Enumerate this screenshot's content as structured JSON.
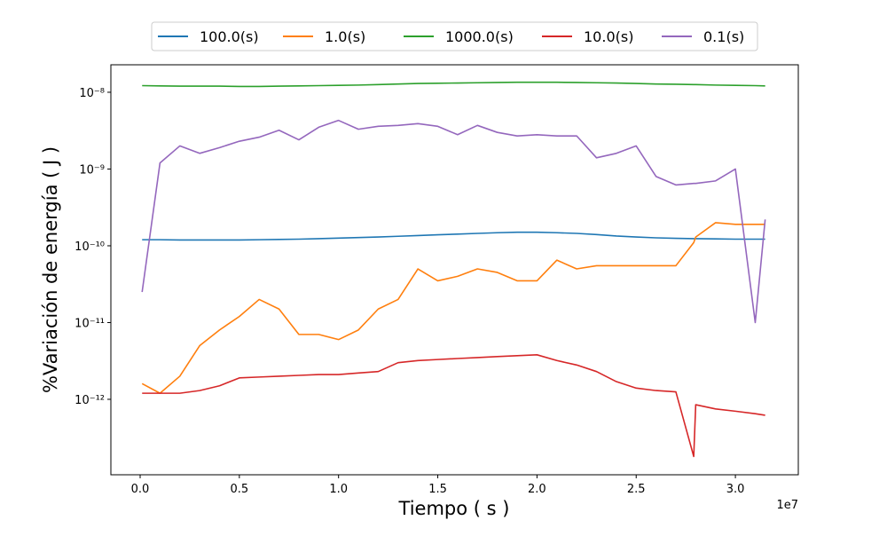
{
  "chart_data": {
    "type": "line",
    "xlabel": "Tiempo ( s )",
    "ylabel": "%Variación de energía ( J )",
    "x_offset_label": "1e7",
    "yscale": "log",
    "legend": "top-outside",
    "x": [
      100000,
      1000000,
      2000000,
      3000000,
      4000000,
      5000000,
      6000000,
      7000000,
      8000000,
      9000000,
      10000000,
      11000000,
      12000000,
      13000000,
      14000000,
      15000000,
      16000000,
      17000000,
      18000000,
      19000000,
      20000000,
      21000000,
      22000000,
      23000000,
      24000000,
      25000000,
      26000000,
      27000000,
      27900000,
      28000000,
      29000000,
      30000000,
      31000000,
      31500000
    ],
    "xlim": [
      -1475000,
      33170000
    ],
    "xticks": [
      {
        "value": 0,
        "label": "0.0"
      },
      {
        "value": 5000000,
        "label": "0.5"
      },
      {
        "value": 10000000,
        "label": "1.0"
      },
      {
        "value": 15000000,
        "label": "1.5"
      },
      {
        "value": 20000000,
        "label": "2.0"
      },
      {
        "value": 25000000,
        "label": "2.5"
      },
      {
        "value": 30000000,
        "label": "3.0"
      }
    ],
    "ylim": [
      1.04e-13,
      2.28e-08
    ],
    "yticks": [
      {
        "value": 1e-12,
        "label": "10⁻¹²"
      },
      {
        "value": 1e-11,
        "label": "10⁻¹¹"
      },
      {
        "value": 1e-10,
        "label": "10⁻¹⁰"
      },
      {
        "value": 1e-09,
        "label": "10⁻⁹"
      },
      {
        "value": 1e-08,
        "label": "10⁻⁸"
      }
    ],
    "series": [
      {
        "name": "100.0(s)",
        "color": "#1f77b4",
        "values": [
          1.2e-10,
          1.2e-10,
          1.19e-10,
          1.19e-10,
          1.19e-10,
          1.19e-10,
          1.2e-10,
          1.21e-10,
          1.22e-10,
          1.24e-10,
          1.26e-10,
          1.28e-10,
          1.3e-10,
          1.33e-10,
          1.36e-10,
          1.39e-10,
          1.42e-10,
          1.45e-10,
          1.48e-10,
          1.5e-10,
          1.5e-10,
          1.48e-10,
          1.45e-10,
          1.4e-10,
          1.34e-10,
          1.3e-10,
          1.27e-10,
          1.25e-10,
          1.24e-10,
          1.24e-10,
          1.23e-10,
          1.22e-10,
          1.22e-10,
          1.22e-10
        ]
      },
      {
        "name": "1.0(s)",
        "color": "#ff7f0e",
        "values": [
          1.6e-12,
          1.2e-12,
          2e-12,
          5e-12,
          8e-12,
          1.2e-11,
          2e-11,
          1.5e-11,
          7e-12,
          7e-12,
          6e-12,
          8e-12,
          1.5e-11,
          2e-11,
          5e-11,
          3.5e-11,
          4e-11,
          5e-11,
          4.5e-11,
          3.5e-11,
          3.5e-11,
          6.5e-11,
          5e-11,
          5.5e-11,
          5.5e-11,
          5.5e-11,
          5.5e-11,
          5.5e-11,
          1.1e-10,
          1.3e-10,
          2e-10,
          1.9e-10,
          1.9e-10,
          1.9e-10
        ]
      },
      {
        "name": "1000.0(s)",
        "color": "#2ca02c",
        "values": [
          1.22e-08,
          1.21e-08,
          1.2e-08,
          1.2e-08,
          1.2e-08,
          1.19e-08,
          1.19e-08,
          1.2e-08,
          1.21e-08,
          1.22e-08,
          1.23e-08,
          1.24e-08,
          1.26e-08,
          1.28e-08,
          1.3e-08,
          1.31e-08,
          1.32e-08,
          1.33e-08,
          1.34e-08,
          1.35e-08,
          1.35e-08,
          1.35e-08,
          1.34e-08,
          1.33e-08,
          1.32e-08,
          1.3e-08,
          1.28e-08,
          1.27e-08,
          1.26e-08,
          1.26e-08,
          1.24e-08,
          1.23e-08,
          1.22e-08,
          1.21e-08
        ]
      },
      {
        "name": "10.0(s)",
        "color": "#d62728",
        "values": [
          1.2e-12,
          1.2e-12,
          1.2e-12,
          1.3e-12,
          1.5e-12,
          1.9e-12,
          1.95e-12,
          2e-12,
          2.05e-12,
          2.1e-12,
          2.1e-12,
          2.2e-12,
          2.3e-12,
          3e-12,
          3.2e-12,
          3.3e-12,
          3.4e-12,
          3.5e-12,
          3.6e-12,
          3.7e-12,
          3.8e-12,
          3.2e-12,
          2.8e-12,
          2.3e-12,
          1.7e-12,
          1.4e-12,
          1.3e-12,
          1.25e-12,
          1.8e-13,
          8.5e-13,
          7.5e-13,
          7e-13,
          6.5e-13,
          6.2e-13
        ]
      },
      {
        "name": "0.1(s)",
        "color": "#9467bd",
        "values": [
          2.5e-11,
          1.2e-09,
          2e-09,
          1.6e-09,
          1.9e-09,
          2.3e-09,
          2.6e-09,
          3.2e-09,
          2.4e-09,
          3.5e-09,
          4.3e-09,
          3.3e-09,
          3.6e-09,
          3.7e-09,
          3.9e-09,
          3.6e-09,
          2.8e-09,
          3.7e-09,
          3e-09,
          2.7e-09,
          2.8e-09,
          2.7e-09,
          2.7e-09,
          1.4e-09,
          1.6e-09,
          2e-09,
          8e-10,
          6.2e-10,
          6.5e-10,
          6.5e-10,
          7e-10,
          1e-09,
          1e-11,
          2.2e-10
        ]
      }
    ]
  }
}
